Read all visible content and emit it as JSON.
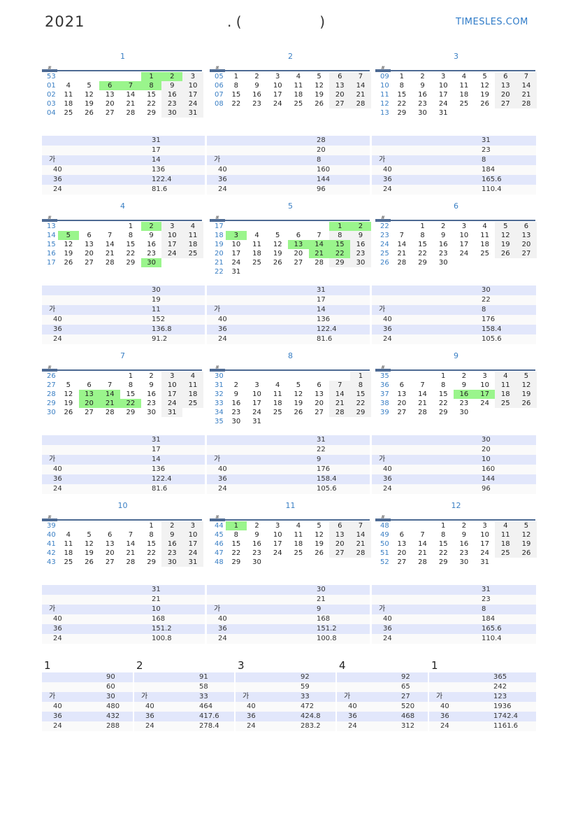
{
  "header": {
    "year": "2021",
    "subtitle_left": ". (",
    "subtitle_right": ")",
    "brand": "TIMESLES.COM"
  },
  "colors": {
    "holiday": "#9af58c",
    "weekend": "#f2f2f2",
    "week_number": "#3a7fc4",
    "row_alt": "#e2e7fb"
  },
  "week_header": "#",
  "summary_labels": [
    "",
    "",
    "가",
    "40",
    "36",
    "24"
  ],
  "months": [
    {
      "title": "1",
      "weeks": [
        [
          "53",
          null,
          null,
          null,
          null,
          "1",
          "2",
          "3"
        ],
        [
          "01",
          "4",
          "5",
          "6",
          "7",
          "8",
          "9",
          "10"
        ],
        [
          "02",
          "11",
          "12",
          "13",
          "14",
          "15",
          "16",
          "17"
        ],
        [
          "03",
          "18",
          "19",
          "20",
          "21",
          "22",
          "23",
          "24"
        ],
        [
          "04",
          "25",
          "26",
          "27",
          "28",
          "29",
          "30",
          "31"
        ]
      ],
      "holidays": [
        "1",
        "2",
        "6",
        "7",
        "8"
      ],
      "summary": [
        "31",
        "17",
        "14",
        "136",
        "122.4",
        "81.6"
      ]
    },
    {
      "title": "2",
      "weeks": [
        [
          "05",
          "1",
          "2",
          "3",
          "4",
          "5",
          "6",
          "7"
        ],
        [
          "06",
          "8",
          "9",
          "10",
          "11",
          "12",
          "13",
          "14"
        ],
        [
          "07",
          "15",
          "16",
          "17",
          "18",
          "19",
          "20",
          "21"
        ],
        [
          "08",
          "22",
          "23",
          "24",
          "25",
          "26",
          "27",
          "28"
        ]
      ],
      "holidays": [],
      "summary": [
        "28",
        "20",
        "8",
        "160",
        "144",
        "96"
      ]
    },
    {
      "title": "3",
      "weeks": [
        [
          "09",
          "1",
          "2",
          "3",
          "4",
          "5",
          "6",
          "7"
        ],
        [
          "10",
          "8",
          "9",
          "10",
          "11",
          "12",
          "13",
          "14"
        ],
        [
          "11",
          "15",
          "16",
          "17",
          "18",
          "19",
          "20",
          "21"
        ],
        [
          "12",
          "22",
          "23",
          "24",
          "25",
          "26",
          "27",
          "28"
        ],
        [
          "13",
          "29",
          "30",
          "31",
          null,
          null,
          null,
          null
        ]
      ],
      "holidays": [],
      "summary": [
        "31",
        "23",
        "8",
        "184",
        "165.6",
        "110.4"
      ]
    },
    {
      "title": "4",
      "weeks": [
        [
          "13",
          null,
          null,
          null,
          "1",
          "2",
          "3",
          "4"
        ],
        [
          "14",
          "5",
          "6",
          "7",
          "8",
          "9",
          "10",
          "11"
        ],
        [
          "15",
          "12",
          "13",
          "14",
          "15",
          "16",
          "17",
          "18"
        ],
        [
          "16",
          "19",
          "20",
          "21",
          "22",
          "23",
          "24",
          "25"
        ],
        [
          "17",
          "26",
          "27",
          "28",
          "29",
          "30",
          null,
          null
        ]
      ],
      "holidays": [
        "2",
        "5",
        "30"
      ],
      "summary": [
        "30",
        "19",
        "11",
        "152",
        "136.8",
        "91.2"
      ]
    },
    {
      "title": "5",
      "weeks": [
        [
          "17",
          null,
          null,
          null,
          null,
          null,
          "1",
          "2"
        ],
        [
          "18",
          "3",
          "4",
          "5",
          "6",
          "7",
          "8",
          "9"
        ],
        [
          "19",
          "10",
          "11",
          "12",
          "13",
          "14",
          "15",
          "16"
        ],
        [
          "20",
          "17",
          "18",
          "19",
          "20",
          "21",
          "22",
          "23"
        ],
        [
          "21",
          "24",
          "25",
          "26",
          "27",
          "28",
          "29",
          "30"
        ],
        [
          "22",
          "31",
          null,
          null,
          null,
          null,
          null,
          null
        ]
      ],
      "holidays": [
        "1",
        "2",
        "3",
        "13",
        "14",
        "15",
        "21",
        "22"
      ],
      "summary": [
        "31",
        "17",
        "14",
        "136",
        "122.4",
        "81.6"
      ]
    },
    {
      "title": "6",
      "weeks": [
        [
          "22",
          null,
          "1",
          "2",
          "3",
          "4",
          "5",
          "6"
        ],
        [
          "23",
          "7",
          "8",
          "9",
          "10",
          "11",
          "12",
          "13"
        ],
        [
          "24",
          "14",
          "15",
          "16",
          "17",
          "18",
          "19",
          "20"
        ],
        [
          "25",
          "21",
          "22",
          "23",
          "24",
          "25",
          "26",
          "27"
        ],
        [
          "26",
          "28",
          "29",
          "30",
          null,
          null,
          null,
          null
        ]
      ],
      "holidays": [],
      "summary": [
        "30",
        "22",
        "8",
        "176",
        "158.4",
        "105.6"
      ]
    },
    {
      "title": "7",
      "weeks": [
        [
          "26",
          null,
          null,
          null,
          "1",
          "2",
          "3",
          "4"
        ],
        [
          "27",
          "5",
          "6",
          "7",
          "8",
          "9",
          "10",
          "11"
        ],
        [
          "28",
          "12",
          "13",
          "14",
          "15",
          "16",
          "17",
          "18"
        ],
        [
          "29",
          "19",
          "20",
          "21",
          "22",
          "23",
          "24",
          "25"
        ],
        [
          "30",
          "26",
          "27",
          "28",
          "29",
          "30",
          "31",
          null
        ]
      ],
      "holidays": [
        "13",
        "14",
        "20",
        "21",
        "22"
      ],
      "summary": [
        "31",
        "17",
        "14",
        "136",
        "122.4",
        "81.6"
      ]
    },
    {
      "title": "8",
      "weeks": [
        [
          "30",
          null,
          null,
          null,
          null,
          null,
          null,
          "1"
        ],
        [
          "31",
          "2",
          "3",
          "4",
          "5",
          "6",
          "7",
          "8"
        ],
        [
          "32",
          "9",
          "10",
          "11",
          "12",
          "13",
          "14",
          "15"
        ],
        [
          "33",
          "16",
          "17",
          "18",
          "19",
          "20",
          "21",
          "22"
        ],
        [
          "34",
          "23",
          "24",
          "25",
          "26",
          "27",
          "28",
          "29"
        ],
        [
          "35",
          "30",
          "31",
          null,
          null,
          null,
          null,
          null
        ]
      ],
      "holidays": [],
      "summary": [
        "31",
        "22",
        "9",
        "176",
        "158.4",
        "105.6"
      ]
    },
    {
      "title": "9",
      "weeks": [
        [
          "35",
          null,
          null,
          "1",
          "2",
          "3",
          "4",
          "5"
        ],
        [
          "36",
          "6",
          "7",
          "8",
          "9",
          "10",
          "11",
          "12"
        ],
        [
          "37",
          "13",
          "14",
          "15",
          "16",
          "17",
          "18",
          "19"
        ],
        [
          "38",
          "20",
          "21",
          "22",
          "23",
          "24",
          "25",
          "26"
        ],
        [
          "39",
          "27",
          "28",
          "29",
          "30",
          null,
          null,
          null
        ]
      ],
      "holidays": [
        "16",
        "17"
      ],
      "summary": [
        "30",
        "20",
        "10",
        "160",
        "144",
        "96"
      ]
    },
    {
      "title": "10",
      "weeks": [
        [
          "39",
          null,
          null,
          null,
          null,
          "1",
          "2",
          "3"
        ],
        [
          "40",
          "4",
          "5",
          "6",
          "7",
          "8",
          "9",
          "10"
        ],
        [
          "41",
          "11",
          "12",
          "13",
          "14",
          "15",
          "16",
          "17"
        ],
        [
          "42",
          "18",
          "19",
          "20",
          "21",
          "22",
          "23",
          "24"
        ],
        [
          "43",
          "25",
          "26",
          "27",
          "28",
          "29",
          "30",
          "31"
        ]
      ],
      "holidays": [],
      "summary": [
        "31",
        "21",
        "10",
        "168",
        "151.2",
        "100.8"
      ]
    },
    {
      "title": "11",
      "weeks": [
        [
          "44",
          "1",
          "2",
          "3",
          "4",
          "5",
          "6",
          "7"
        ],
        [
          "45",
          "8",
          "9",
          "10",
          "11",
          "12",
          "13",
          "14"
        ],
        [
          "46",
          "15",
          "16",
          "17",
          "18",
          "19",
          "20",
          "21"
        ],
        [
          "47",
          "22",
          "23",
          "24",
          "25",
          "26",
          "27",
          "28"
        ],
        [
          "48",
          "29",
          "30",
          null,
          null,
          null,
          null,
          null
        ]
      ],
      "holidays": [
        "1"
      ],
      "summary": [
        "30",
        "21",
        "9",
        "168",
        "151.2",
        "100.8"
      ]
    },
    {
      "title": "12",
      "weeks": [
        [
          "48",
          null,
          null,
          "1",
          "2",
          "3",
          "4",
          "5"
        ],
        [
          "49",
          "6",
          "7",
          "8",
          "9",
          "10",
          "11",
          "12"
        ],
        [
          "50",
          "13",
          "14",
          "15",
          "16",
          "17",
          "18",
          "19"
        ],
        [
          "51",
          "20",
          "21",
          "22",
          "23",
          "24",
          "25",
          "26"
        ],
        [
          "52",
          "27",
          "28",
          "29",
          "30",
          "31",
          null,
          null
        ]
      ],
      "holidays": [],
      "summary": [
        "31",
        "23",
        "8",
        "184",
        "165.6",
        "110.4"
      ]
    }
  ],
  "totals": [
    {
      "title": "1",
      "summary": [
        "90",
        "60",
        "30",
        "480",
        "432",
        "288"
      ]
    },
    {
      "title": "2",
      "summary": [
        "91",
        "58",
        "33",
        "464",
        "417.6",
        "278.4"
      ]
    },
    {
      "title": "3",
      "summary": [
        "92",
        "59",
        "33",
        "472",
        "424.8",
        "283.2"
      ]
    },
    {
      "title": "4",
      "summary": [
        "92",
        "65",
        "27",
        "520",
        "468",
        "312"
      ]
    },
    {
      "title": "1",
      "summary": [
        "365",
        "242",
        "123",
        "1936",
        "1742.4",
        "1161.6"
      ]
    }
  ]
}
